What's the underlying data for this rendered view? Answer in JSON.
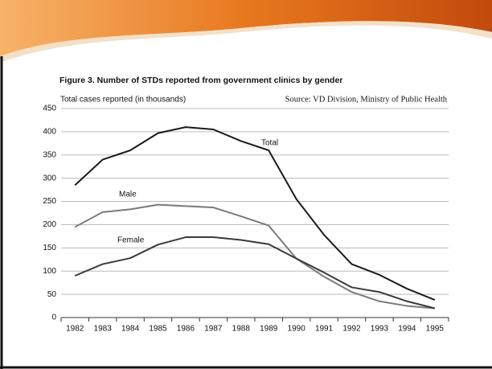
{
  "chart_data": {
    "type": "line",
    "title": "Figure 3. Number of STDs reported from government clinics by gender",
    "source": "Source: VD Division, Ministry of Public Health",
    "y_label": "Total cases reported (in thousands)",
    "categories": [
      "1982",
      "1983",
      "1984",
      "1985",
      "1986",
      "1987",
      "1988",
      "1989",
      "1990",
      "1991",
      "1992",
      "1993",
      "1994",
      "1995"
    ],
    "series": [
      {
        "name": "Total",
        "color": "#1a1a1a",
        "values": [
          285,
          340,
          360,
          397,
          410,
          405,
          380,
          360,
          255,
          178,
          115,
          92,
          62,
          38
        ]
      },
      {
        "name": "Male",
        "color": "#7a7a7a",
        "values": [
          195,
          227,
          233,
          243,
          240,
          237,
          218,
          198,
          127,
          88,
          55,
          35,
          25,
          20
        ]
      },
      {
        "name": "Female",
        "color": "#3a3a3a",
        "values": [
          90,
          115,
          128,
          157,
          173,
          173,
          167,
          158,
          127,
          97,
          65,
          55,
          35,
          20
        ]
      }
    ],
    "ylim": [
      0,
      450
    ],
    "yticks": [
      0,
      50,
      100,
      150,
      200,
      250,
      300,
      350,
      400,
      450
    ],
    "grid": true
  }
}
